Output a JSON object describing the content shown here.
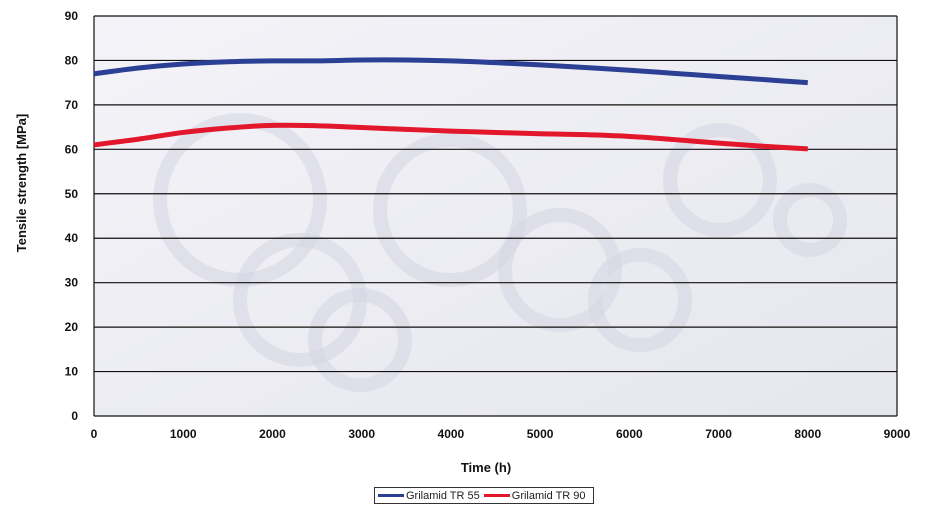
{
  "chart_data": {
    "type": "line",
    "xlabel": "Time (h)",
    "ylabel": "Tensile strength [MPa]",
    "xlim": [
      0,
      9000
    ],
    "ylim": [
      0,
      90
    ],
    "x_ticks": [
      0,
      1000,
      2000,
      3000,
      4000,
      5000,
      6000,
      7000,
      8000,
      9000
    ],
    "y_ticks": [
      0,
      10,
      20,
      30,
      40,
      50,
      60,
      70,
      80,
      90
    ],
    "grid": "horizontal",
    "legend_position": "bottom",
    "series": [
      {
        "name": "Grilamid TR 55",
        "color": "#2b3f95",
        "x": [
          0,
          500,
          1000,
          1500,
          2000,
          2500,
          3000,
          3500,
          4000,
          4500,
          5000,
          5500,
          6000,
          6500,
          7000,
          7500,
          8000
        ],
        "y": [
          77,
          78.3,
          79.2,
          79.7,
          79.9,
          79.9,
          80.1,
          80.1,
          79.9,
          79.5,
          79,
          78.4,
          77.8,
          77.1,
          76.4,
          75.7,
          75
        ]
      },
      {
        "name": "Grilamid TR 90",
        "color": "#e3172b",
        "x": [
          0,
          500,
          1000,
          1500,
          2000,
          2500,
          3000,
          3500,
          4000,
          4500,
          5000,
          5500,
          6000,
          6500,
          7000,
          7500,
          8000
        ],
        "y": [
          61,
          62.3,
          63.8,
          64.8,
          65.4,
          65.3,
          64.9,
          64.5,
          64.1,
          63.8,
          63.5,
          63.3,
          62.9,
          62.2,
          61.4,
          60.7,
          60.1
        ]
      }
    ]
  }
}
